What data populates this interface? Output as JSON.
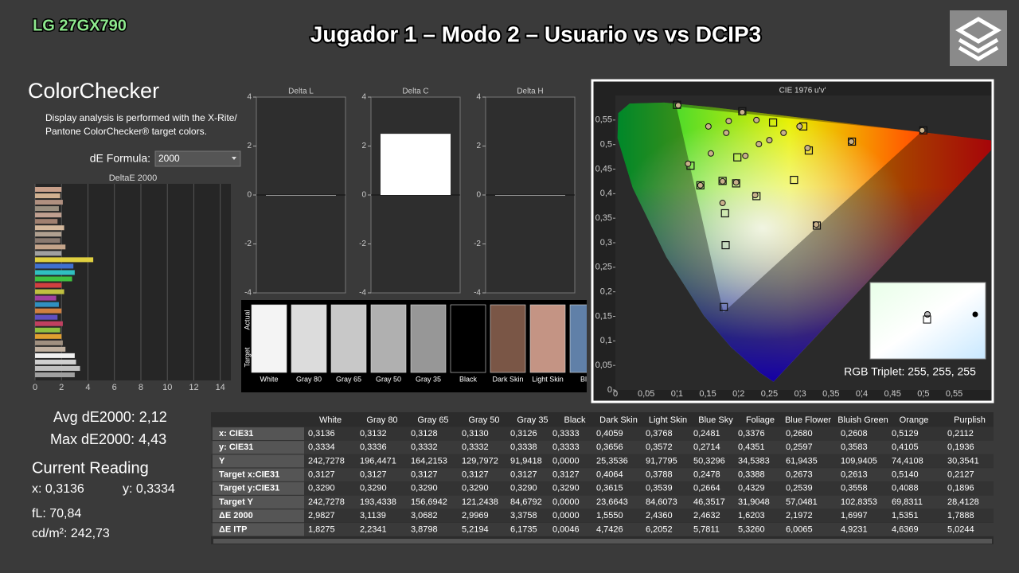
{
  "header": {
    "brand": "LG 27GX790",
    "title": "Jugador 1 – Modo 2 – Usuario vs vs DCIP3"
  },
  "colorchecker": {
    "heading": "ColorChecker",
    "description": [
      "Display analysis is performed with the X-Rite/",
      "Pantone ColorChecker® target colors."
    ],
    "formula_label": "dE Formula:",
    "formula_value": "2000",
    "chart": {
      "type": "bar",
      "title": "DeltaE 2000",
      "xlim": [
        0,
        14.8
      ],
      "xticks": [
        0,
        2,
        4,
        6,
        8,
        10,
        12,
        14
      ],
      "values": [
        2.0,
        1.9,
        2.1,
        1.8,
        2.0,
        1.7,
        2.2,
        2.0,
        1.9,
        2.3,
        2.0,
        4.4,
        2.9,
        3.0,
        2.8,
        2.0,
        2.2,
        1.6,
        1.8,
        2.0,
        1.7,
        2.1,
        1.9,
        2.0,
        2.1,
        2.3,
        3.0,
        3.1,
        3.4,
        3.0
      ],
      "colors": [
        "#c8a08a",
        "#d0b090",
        "#b09080",
        "#9a8f80",
        "#c0a090",
        "#a08070",
        "#d4b89c",
        "#b0a090",
        "#8a7a70",
        "#c4a48a",
        "#a0a0a0",
        "#e0d040",
        "#4070d0",
        "#30c0c0",
        "#40c040",
        "#d04040",
        "#c0c040",
        "#a040a0",
        "#3090c0",
        "#d08040",
        "#6050c0",
        "#c04060",
        "#90c040",
        "#e0a030",
        "#a09080",
        "#c0b0a0",
        "#f0f0f0",
        "#d0d0d0",
        "#c0c0c0",
        "#a0a0a0"
      ]
    }
  },
  "stats": {
    "avg": "Avg dE2000: 2,12",
    "max": "Max dE2000: 4,43",
    "current_heading": "Current Reading",
    "x": "x: 0,3136",
    "y": "y: 0,3334",
    "fl": "fL: 70,84",
    "cdm2": "cd/m²: 242,73"
  },
  "delta_charts": [
    {
      "title": "Delta L",
      "ylim": [
        -4,
        4
      ],
      "yticks": [
        4,
        2,
        0,
        -2,
        -4
      ],
      "value": 0
    },
    {
      "title": "Delta C",
      "ylim": [
        -4,
        4
      ],
      "yticks": [
        4,
        2,
        0,
        -2,
        -4
      ],
      "value": 2.5
    },
    {
      "title": "Delta H",
      "ylim": [
        -4,
        4
      ],
      "yticks": [
        4,
        2,
        0,
        -2,
        -4
      ],
      "value": 0
    }
  ],
  "swatches": {
    "actual_label": "Actual",
    "target_label": "Target",
    "names": [
      "White",
      "Gray 80",
      "Gray 65",
      "Gray 50",
      "Gray 35",
      "Black",
      "Dark Skin",
      "Light Skin",
      "Blue"
    ]
  },
  "cie": {
    "title": "CIE 1976 u'v'",
    "xlim": [
      0,
      0.61
    ],
    "ylim": [
      0,
      0.6
    ],
    "xticks": [
      0,
      {
        "value": 0.05,
        "label": "0,05"
      },
      {
        "value": 0.1,
        "label": "0,1"
      },
      {
        "value": 0.15,
        "label": "0,15"
      },
      {
        "value": 0.2,
        "label": "0,2"
      },
      {
        "value": 0.25,
        "label": "0,25"
      },
      {
        "value": 0.3,
        "label": "0,3"
      },
      {
        "value": 0.35,
        "label": "0,35"
      },
      {
        "value": 0.4,
        "label": "0,4"
      },
      {
        "value": 0.45,
        "label": "0,45"
      },
      {
        "value": 0.5,
        "label": "0,5"
      },
      {
        "value": 0.55,
        "label": "0,55"
      }
    ],
    "yticks": [
      0,
      {
        "value": 0.05,
        "label": "0,05"
      },
      {
        "value": 0.1,
        "label": "0,1"
      },
      {
        "value": 0.15,
        "label": "0,15"
      },
      {
        "value": 0.2,
        "label": "0,2"
      },
      {
        "value": 0.25,
        "label": "0,25"
      },
      {
        "value": 0.3,
        "label": "0,3"
      },
      {
        "value": 0.35,
        "label": "0,35"
      },
      {
        "value": 0.4,
        "label": "0,4"
      },
      {
        "value": 0.45,
        "label": "0,45"
      },
      {
        "value": 0.5,
        "label": "0,5"
      },
      {
        "value": 0.55,
        "label": "0,55"
      }
    ],
    "targets": {
      "u": [
        0.1,
        0.206,
        0.5,
        0.176,
        0.179,
        0.178,
        0.138,
        0.122,
        0.198,
        0.229,
        0.29,
        0.327,
        0.384,
        0.314,
        0.256,
        0.305,
        0.174,
        0.196
      ],
      "v": [
        0.581,
        0.568,
        0.529,
        0.169,
        0.295,
        0.36,
        0.417,
        0.457,
        0.474,
        0.395,
        0.428,
        0.335,
        0.506,
        0.488,
        0.545,
        0.537,
        0.426,
        0.421
      ]
    },
    "measured": {
      "u": [
        0.151,
        0.184,
        0.18,
        0.229,
        0.118,
        0.155,
        0.211,
        0.233,
        0.25,
        0.273,
        0.299,
        0.312,
        0.383,
        0.498,
        0.174,
        0.227,
        0.138,
        0.196,
        0.326,
        0.174,
        0.206,
        0.102
      ],
      "v": [
        0.537,
        0.548,
        0.524,
        0.55,
        0.461,
        0.482,
        0.477,
        0.501,
        0.509,
        0.524,
        0.537,
        0.493,
        0.506,
        0.529,
        0.381,
        0.397,
        0.417,
        0.423,
        0.337,
        0.425,
        0.566,
        0.58
      ]
    },
    "inset_label": "RGB Triplet: 255, 255, 255"
  },
  "table": {
    "columns": [
      "White",
      "Gray 80",
      "Gray 65",
      "Gray 50",
      "Gray 35",
      "Black",
      "Dark Skin",
      "Light Skin",
      "Blue Sky",
      "Foliage",
      "Blue Flower",
      "Bluish Green",
      "Orange",
      "Purplish"
    ],
    "rows": [
      {
        "label": "x: CIE31",
        "cells": [
          "0,3136",
          "0,3132",
          "0,3128",
          "0,3130",
          "0,3126",
          "0,3333",
          "0,4059",
          "0,3768",
          "0,2481",
          "0,3376",
          "0,2680",
          "0,2608",
          "0,5129",
          "0,2112"
        ]
      },
      {
        "label": "y: CIE31",
        "cells": [
          "0,3334",
          "0,3336",
          "0,3332",
          "0,3332",
          "0,3338",
          "0,3333",
          "0,3656",
          "0,3572",
          "0,2714",
          "0,4351",
          "0,2597",
          "0,3583",
          "0,4105",
          "0,1936"
        ]
      },
      {
        "label": "Y",
        "cells": [
          "242,7278",
          "196,4471",
          "164,2153",
          "129,7972",
          "91,9418",
          "0,0000",
          "25,3536",
          "91,7795",
          "50,3296",
          "34,5383",
          "61,9435",
          "109,9405",
          "74,4108",
          "30,3541"
        ]
      },
      {
        "label": "Target x:CIE31",
        "cells": [
          "0,3127",
          "0,3127",
          "0,3127",
          "0,3127",
          "0,3127",
          "0,3127",
          "0,4064",
          "0,3788",
          "0,2478",
          "0,3388",
          "0,2673",
          "0,2613",
          "0,5140",
          "0,2127"
        ]
      },
      {
        "label": "Target y:CIE31",
        "cells": [
          "0,3290",
          "0,3290",
          "0,3290",
          "0,3290",
          "0,3290",
          "0,3290",
          "0,3615",
          "0,3539",
          "0,2664",
          "0,4329",
          "0,2539",
          "0,3558",
          "0,4088",
          "0,1896"
        ]
      },
      {
        "label": "Target Y",
        "cells": [
          "242,7278",
          "193,4338",
          "156,6942",
          "121,2438",
          "84,6792",
          "0,0000",
          "23,6643",
          "84,6073",
          "46,3517",
          "31,9048",
          "57,0481",
          "102,8353",
          "69,8311",
          "28,4128"
        ]
      },
      {
        "label": "ΔE 2000",
        "cells": [
          "2,9827",
          "3,1139",
          "3,0682",
          "2,9969",
          "3,3758",
          "0,0000",
          "1,5550",
          "2,4360",
          "2,4632",
          "1,6203",
          "2,1972",
          "1,6997",
          "1,5351",
          "1,7888"
        ]
      },
      {
        "label": "ΔE ITP",
        "cells": [
          "1,8275",
          "2,2341",
          "3,8798",
          "5,2194",
          "6,1735",
          "0,0046",
          "4,7426",
          "6,2052",
          "5,7811",
          "5,3260",
          "6,0065",
          "4,9231",
          "4,6369",
          "5,0244"
        ]
      }
    ]
  }
}
